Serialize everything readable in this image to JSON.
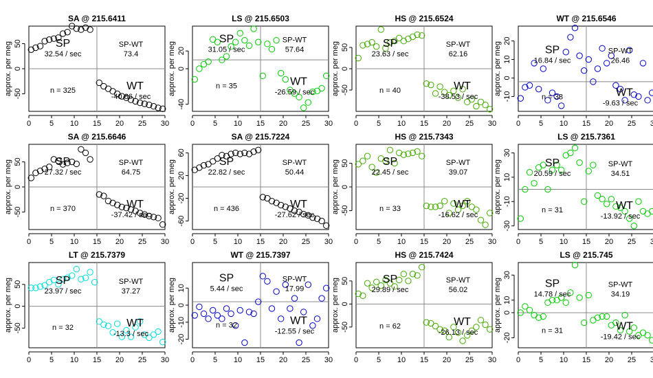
{
  "chart_data": [
    {
      "type": "scatter",
      "title": "SA @ 215.6411",
      "color": "#000000",
      "ylabel": "approx. per meg",
      "xlim": [
        0,
        30
      ],
      "ylim": [
        -85,
        85
      ],
      "yticks": [
        -50,
        0,
        50
      ],
      "xticks": [
        0,
        5,
        10,
        15,
        20,
        25,
        30
      ],
      "vline": 15,
      "hline": 0,
      "n_label": "n = 325",
      "sp_label": "SP",
      "sp_rate": "32.54 / sec",
      "spwt_label": "SP-WT",
      "spwt_value": "73.4",
      "wt_label": "WT",
      "wt_rate": "-40.86 / sec",
      "x": [
        0.5,
        1.5,
        2.5,
        3.5,
        4.5,
        5.5,
        6.5,
        7.5,
        8.5,
        9.5,
        10.5,
        11.5,
        12.5,
        13.5,
        15.5,
        16.5,
        17.5,
        18.5,
        19.5,
        20.5,
        21.5,
        22.5,
        23.5,
        24.5,
        25.5,
        26.5,
        27.5,
        28.5,
        29.5
      ],
      "y": [
        38,
        42,
        45,
        55,
        58,
        60,
        62,
        70,
        73,
        85,
        80,
        78,
        82,
        78,
        -28,
        -35,
        -40,
        -45,
        -50,
        -55,
        -58,
        -62,
        -65,
        -68,
        -70,
        -72,
        -75,
        -78,
        -80
      ]
    },
    {
      "type": "scatter",
      "title": "LS @ 215.6503",
      "color": "#00cc00",
      "ylabel": "approx. per meg",
      "xlim": [
        0,
        30
      ],
      "ylim": [
        -48,
        48
      ],
      "yticks": [
        -40,
        0,
        20
      ],
      "xticks": [
        0,
        5,
        10,
        15,
        20,
        25,
        30
      ],
      "vline": 15,
      "hline": 10,
      "n_label": "n = 35",
      "sp_label": "SP",
      "sp_rate": "31.05 / sec",
      "spwt_label": "SP-WT",
      "spwt_value": "57.64",
      "wt_label": "WT",
      "wt_rate": "-26.59 / sec",
      "x": [
        0.5,
        1.5,
        2.5,
        3.5,
        4.5,
        5.5,
        6.5,
        7.5,
        8.5,
        9.5,
        10.5,
        11.5,
        12.5,
        13.5,
        14.5,
        15.5,
        16.5,
        17.5,
        18.5,
        19.5,
        20.5,
        21.5,
        22.5,
        23.5,
        24.5,
        25.5,
        26.5,
        27.5,
        28.5,
        29.5
      ],
      "y": [
        -12,
        0,
        5,
        8,
        33,
        30,
        10,
        14,
        25,
        30,
        40,
        32,
        26,
        45,
        30,
        -8,
        28,
        22,
        32,
        -5,
        -12,
        -24,
        -28,
        -32,
        -44,
        -38,
        -26,
        -25,
        -22,
        -8
      ]
    },
    {
      "type": "scatter",
      "title": "HS @ 215.6524",
      "color": "#44aa00",
      "ylabel": "approx. per meg",
      "xlim": [
        0,
        30
      ],
      "ylim": [
        -100,
        100
      ],
      "yticks": [
        -50,
        0,
        50
      ],
      "xticks": [
        0,
        5,
        10,
        15,
        20,
        25,
        30
      ],
      "vline": 15,
      "hline": 0,
      "n_label": "n = 40",
      "sp_label": "SP",
      "sp_rate": "23.63 / sec",
      "spwt_label": "SP-WT",
      "spwt_value": "62.16",
      "wt_label": "WT",
      "wt_rate": "-38.53 / sec",
      "x": [
        0.5,
        1.5,
        2.5,
        3.5,
        4.5,
        5.5,
        6.5,
        7.5,
        8.5,
        9.5,
        10.5,
        11.5,
        12.5,
        13.5,
        14.5,
        15.5,
        16.5,
        17.5,
        18.5,
        19.5,
        20.5,
        21.5,
        22.5,
        23.5,
        24.5,
        25.5,
        26.5,
        27.5,
        28.5,
        29.5
      ],
      "y": [
        25,
        55,
        58,
        62,
        52,
        92,
        48,
        62,
        65,
        72,
        65,
        70,
        75,
        80,
        78,
        -35,
        -38,
        -58,
        -42,
        -55,
        -62,
        -52,
        -68,
        -48,
        -78,
        -72,
        -88,
        -78,
        -85,
        -95
      ]
    },
    {
      "type": "scatter",
      "title": "WT @ 215.6546",
      "color": "#0000cc",
      "ylabel": "approx. per meg",
      "xlim": [
        0,
        30
      ],
      "ylim": [
        -18,
        28
      ],
      "yticks": [
        -10,
        0,
        10,
        20
      ],
      "xticks": [
        0,
        5,
        10,
        15,
        20,
        25,
        30
      ],
      "vline": 15,
      "hline": -2,
      "n_label": "n = 38",
      "sp_label": "SP",
      "sp_rate": "16.84 / sec",
      "spwt_label": "SP-WT",
      "spwt_value": "26.46",
      "wt_label": "WT",
      "wt_rate": "-9.63 / sec",
      "x": [
        0.5,
        1.5,
        2.5,
        3.5,
        4.5,
        5.5,
        6.5,
        7.5,
        8.5,
        9.5,
        10.5,
        11.5,
        12.5,
        13.5,
        14.5,
        15.5,
        16.5,
        17.5,
        18.5,
        19.5,
        20.5,
        21.5,
        22.5,
        23.5,
        24.5,
        25.5,
        26.5,
        27.5,
        28.5,
        29.5
      ],
      "y": [
        -11,
        -5,
        -4,
        8,
        -6,
        5,
        -12,
        -8,
        -10,
        -15,
        14,
        22,
        27,
        12,
        4,
        10,
        -2,
        5,
        16,
        8,
        12,
        -4,
        -6,
        -12,
        15,
        -9,
        -10,
        8,
        -12,
        -8
      ]
    },
    {
      "type": "scatter",
      "title": "SA @ 215.6646",
      "color": "#000000",
      "ylabel": "approx. per meg",
      "xlim": [
        0,
        30
      ],
      "ylim": [
        -85,
        85
      ],
      "yticks": [
        -50,
        0,
        50
      ],
      "xticks": [
        0,
        5,
        10,
        15,
        20,
        25,
        30
      ],
      "vline": 15,
      "hline": 0,
      "n_label": "n = 370",
      "sp_label": "SP",
      "sp_rate": "27.32 / sec",
      "spwt_label": "SP-WT",
      "spwt_value": "64.75",
      "wt_label": "WT",
      "wt_rate": "-37.42 / sec",
      "x": [
        0.5,
        1.5,
        2.5,
        3.5,
        4.5,
        5.5,
        6.5,
        7.5,
        8.5,
        9.5,
        10.5,
        11.5,
        12.5,
        13.5,
        15.5,
        16.5,
        17.5,
        18.5,
        19.5,
        20.5,
        21.5,
        22.5,
        23.5,
        24.5,
        25.5,
        26.5,
        27.5,
        28.5,
        29.5
      ],
      "y": [
        18,
        28,
        32,
        36,
        40,
        55,
        52,
        45,
        48,
        50,
        46,
        75,
        68,
        55,
        -15,
        -18,
        -28,
        -32,
        -36,
        -40,
        -42,
        -45,
        -48,
        -52,
        -55,
        -58,
        -60,
        -62,
        -75
      ]
    },
    {
      "type": "scatter",
      "title": "SA @ 215.7224",
      "color": "#000000",
      "ylabel": "approx. per meg",
      "xlim": [
        0,
        30
      ],
      "ylim": [
        -75,
        75
      ],
      "yticks": [
        -60,
        -20,
        20,
        60
      ],
      "xticks": [
        0,
        5,
        10,
        15,
        20,
        25,
        30
      ],
      "vline": 15,
      "hline": 0,
      "n_label": "n = 436",
      "sp_label": "SP",
      "sp_rate": "22.82 / sec",
      "spwt_label": "SP-WT",
      "spwt_value": "50.44",
      "wt_label": "WT",
      "wt_rate": "-27.62 / sec",
      "x": [
        0.5,
        1.5,
        2.5,
        3.5,
        4.5,
        5.5,
        6.5,
        7.5,
        8.5,
        9.5,
        10.5,
        11.5,
        12.5,
        13.5,
        14.5,
        15.5,
        16.5,
        17.5,
        18.5,
        19.5,
        20.5,
        21.5,
        22.5,
        23.5,
        24.5,
        25.5,
        26.5,
        27.5,
        28.5,
        29.5
      ],
      "y": [
        30,
        34,
        38,
        40,
        45,
        50,
        56,
        54,
        58,
        60,
        58,
        60,
        58,
        62,
        65,
        -18,
        -20,
        -25,
        -28,
        -32,
        -35,
        -38,
        -42,
        -44,
        -48,
        -50,
        -54,
        -56,
        -60,
        -68
      ]
    },
    {
      "type": "scatter",
      "title": "HS @ 215.7343",
      "color": "#44aa00",
      "ylabel": "approx. per meg",
      "xlim": [
        0,
        30
      ],
      "ylim": [
        -90,
        90
      ],
      "yticks": [
        -50,
        0,
        50
      ],
      "xticks": [
        0,
        5,
        10,
        15,
        20,
        25,
        30
      ],
      "vline": 15,
      "hline": 0,
      "n_label": "n = 33",
      "sp_label": "SP",
      "sp_rate": "22.45 / sec",
      "spwt_label": "SP-WT",
      "spwt_value": "39.07",
      "wt_label": "WT",
      "wt_rate": "-16.62 / sec",
      "x": [
        0.5,
        1.5,
        2.5,
        3.5,
        4.5,
        5.5,
        6.5,
        7.5,
        8.5,
        9.5,
        10.5,
        11.5,
        12.5,
        13.5,
        14.5,
        15.5,
        16.5,
        17.5,
        18.5,
        19.5,
        20.5,
        21.5,
        22.5,
        23.5,
        24.5,
        25.5,
        26.5,
        27.5,
        28.5,
        29.5
      ],
      "y": [
        48,
        55,
        65,
        42,
        30,
        60,
        55,
        78,
        50,
        72,
        68,
        70,
        72,
        75,
        65,
        -40,
        -42,
        -42,
        -40,
        -30,
        -55,
        -35,
        -48,
        -40,
        -30,
        -42,
        -48,
        -70,
        -80,
        -55
      ]
    },
    {
      "type": "scatter",
      "title": "LS @ 215.7361",
      "color": "#00cc00",
      "ylabel": "approx. per meg",
      "xlim": [
        0,
        30
      ],
      "ylim": [
        -33,
        37
      ],
      "yticks": [
        -30,
        -10,
        10,
        30
      ],
      "xticks": [
        0,
        5,
        10,
        15,
        20,
        25,
        30
      ],
      "vline": 15,
      "hline": 0,
      "n_label": "n = 31",
      "sp_label": "SP",
      "sp_rate": "20.59 / sec",
      "spwt_label": "SP-WT",
      "spwt_value": "34.51",
      "wt_label": "WT",
      "wt_rate": "-13.92 / sec",
      "x": [
        0.5,
        1.5,
        2.5,
        3.5,
        4.5,
        5.5,
        6.5,
        7.5,
        8.5,
        9.5,
        10.5,
        11.5,
        12.5,
        13.5,
        14.5,
        15.5,
        16.5,
        17.5,
        18.5,
        19.5,
        20.5,
        21.5,
        22.5,
        23.5,
        24.5,
        25.5,
        26.5,
        27.5,
        28.5,
        29.5
      ],
      "y": [
        -24,
        0,
        14,
        5,
        18,
        20,
        0,
        16,
        20,
        16,
        28,
        30,
        34,
        22,
        -10,
        15,
        20,
        -5,
        -8,
        -12,
        -8,
        -14,
        -15,
        -18,
        -24,
        -30,
        -10,
        -18,
        -20,
        -18
      ]
    },
    {
      "type": "scatter",
      "title": "LT @ 215.7379",
      "color": "#00dddd",
      "ylabel": "approx. per meg",
      "xlim": [
        0,
        30
      ],
      "ylim": [
        -95,
        100
      ],
      "yticks": [
        -50,
        0,
        50
      ],
      "xticks": [
        0,
        5,
        10,
        15,
        20,
        25,
        30
      ],
      "vline": 15,
      "hline": 0,
      "n_label": "n = 32",
      "sp_label": "SP",
      "sp_rate": "23.97 / sec",
      "spwt_label": "SP-WT",
      "spwt_value": "37.27",
      "wt_label": "WT",
      "wt_rate": "-13.3 / sec",
      "x": [
        0.5,
        1.5,
        2.5,
        3.5,
        4.5,
        5.5,
        6.5,
        7.5,
        8.5,
        9.5,
        10.5,
        11.5,
        12.5,
        13.5,
        14.5,
        15.5,
        16.5,
        17.5,
        18.5,
        19.5,
        20.5,
        21.5,
        22.5,
        23.5,
        24.5,
        25.5,
        26.5,
        27.5,
        28.5,
        29.5
      ],
      "y": [
        42,
        42,
        45,
        48,
        55,
        60,
        50,
        62,
        65,
        70,
        85,
        62,
        65,
        78,
        55,
        -35,
        -42,
        -45,
        -60,
        -40,
        -70,
        -55,
        -70,
        -48,
        -35,
        -65,
        -72,
        -65,
        -58,
        -82
      ]
    },
    {
      "type": "scatter",
      "title": "WT @ 215.7397",
      "color": "#0000cc",
      "ylabel": "approx. per meg",
      "xlim": [
        0,
        30
      ],
      "ylim": [
        -25,
        25
      ],
      "yticks": [
        -20,
        -10,
        0,
        10
      ],
      "xticks": [
        0,
        5,
        10,
        15,
        20,
        25,
        30
      ],
      "vline": 15,
      "hline": 2,
      "n_label": "n = 32",
      "sp_label": "SP",
      "sp_rate": "5.44 / sec",
      "spwt_label": "SP-WT",
      "spwt_value": "17.99",
      "wt_label": "WT",
      "wt_rate": "-12.55 / sec",
      "x": [
        0.5,
        1.5,
        2.5,
        3.5,
        4.5,
        5.5,
        6.5,
        7.5,
        8.5,
        9.5,
        10.5,
        11.5,
        12.5,
        13.5,
        14.5,
        15.5,
        16.5,
        17.5,
        18.5,
        19.5,
        20.5,
        21.5,
        22.5,
        23.5,
        24.5,
        25.5,
        26.5,
        27.5,
        28.5,
        29.5
      ],
      "y": [
        -6,
        -1,
        -5,
        -8,
        -3,
        -6,
        -8,
        -2,
        -5,
        -12,
        -3,
        -22,
        -4,
        -5,
        2,
        17,
        14,
        -2,
        8,
        -8,
        12,
        -2,
        4,
        -22,
        -4,
        12,
        -12,
        -8,
        4,
        10
      ]
    },
    {
      "type": "scatter",
      "title": "HS @ 215.7424",
      "color": "#44aa00",
      "ylabel": "approx. per meg",
      "xlim": [
        0,
        30
      ],
      "ylim": [
        -95,
        90
      ],
      "yticks": [
        -50,
        0,
        50
      ],
      "xticks": [
        0,
        5,
        10,
        15,
        20,
        25,
        30
      ],
      "vline": 15,
      "hline": 0,
      "n_label": "n = 62",
      "sp_label": "SP",
      "sp_rate": "29.89 / sec",
      "spwt_label": "SP-WT",
      "spwt_value": "56.02",
      "wt_label": "WT",
      "wt_rate": "-26.13 / sec",
      "x": [
        0.5,
        1.5,
        2.5,
        3.5,
        4.5,
        5.5,
        6.5,
        7.5,
        8.5,
        9.5,
        10.5,
        11.5,
        12.5,
        13.5,
        14.5,
        15.5,
        16.5,
        17.5,
        18.5,
        19.5,
        20.5,
        21.5,
        22.5,
        23.5,
        24.5,
        25.5,
        26.5,
        27.5,
        28.5,
        29.5
      ],
      "y": [
        22,
        18,
        45,
        35,
        48,
        40,
        52,
        45,
        38,
        52,
        65,
        50,
        65,
        62,
        80,
        -40,
        -42,
        -48,
        -55,
        -58,
        -72,
        -50,
        -62,
        -80,
        -68,
        -58,
        -50,
        -35,
        -45,
        -55
      ]
    },
    {
      "type": "scatter",
      "title": "LS @ 215.745",
      "color": "#00cc00",
      "ylabel": "approx. per meg",
      "xlim": [
        0,
        30
      ],
      "ylim": [
        -28,
        40
      ],
      "yticks": [
        -20,
        0,
        10,
        30
      ],
      "xticks": [
        0,
        5,
        10,
        15,
        20,
        25,
        30
      ],
      "vline": 15,
      "hline": 0,
      "n_label": "n = 31",
      "sp_label": "SP",
      "sp_rate": "14.78 / sec",
      "spwt_label": "SP-WT",
      "spwt_value": "34.19",
      "wt_label": "WT",
      "wt_rate": "-19.42 / sec",
      "x": [
        0.5,
        1.5,
        2.5,
        3.5,
        4.5,
        5.5,
        6.5,
        7.5,
        8.5,
        9.5,
        10.5,
        11.5,
        12.5,
        13.5,
        14.5,
        15.5,
        16.5,
        17.5,
        18.5,
        19.5,
        20.5,
        21.5,
        22.5,
        23.5,
        24.5,
        25.5,
        26.5,
        27.5,
        28.5,
        29.5
      ],
      "y": [
        0,
        5,
        2,
        -2,
        -4,
        -3,
        8,
        10,
        10,
        12,
        8,
        16,
        38,
        12,
        -8,
        14,
        -6,
        -4,
        -3,
        -3,
        -10,
        -8,
        -14,
        -2,
        -15,
        -12,
        -18,
        -16,
        -18,
        -22
      ]
    }
  ]
}
